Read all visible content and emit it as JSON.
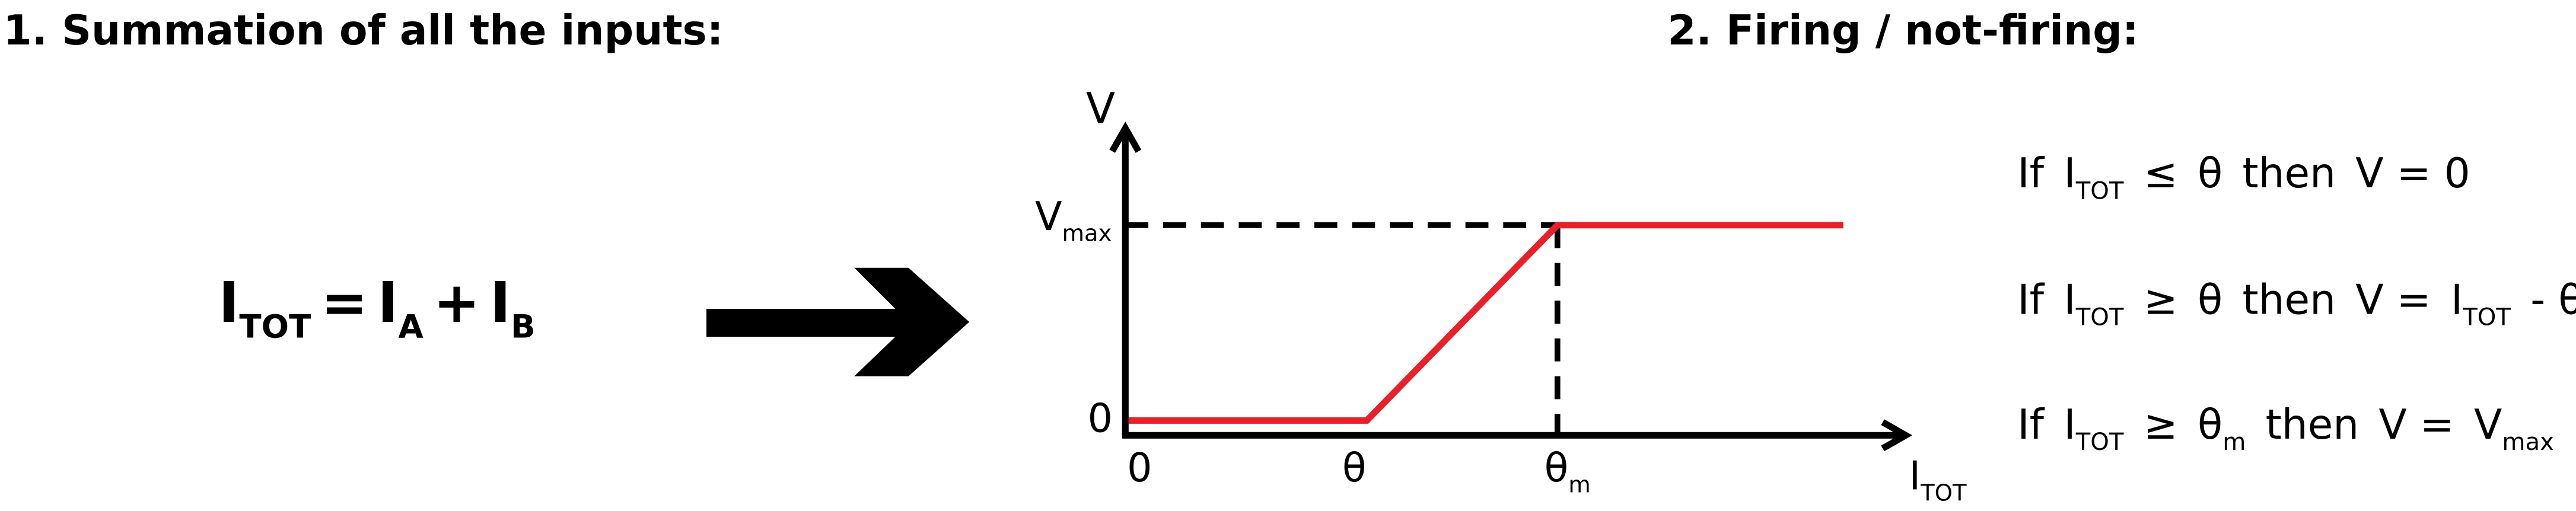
{
  "header": {
    "left_title": "1. Summation of all the inputs:",
    "right_title": "2. Firing / not-firing:"
  },
  "equation": [
    {
      "main": "I",
      "sub": "TOT"
    },
    "=",
    {
      "main": "I",
      "sub": "A"
    },
    "+",
    {
      "main": "I",
      "sub": "B"
    }
  ],
  "graph": {
    "y_label": "V",
    "y_ticks": [
      {
        "main": "V",
        "sub": "max"
      },
      "0"
    ],
    "x_ticks": [
      "0",
      "θ",
      {
        "main": "θ",
        "sub": "m"
      }
    ],
    "x_label": {
      "main": "I",
      "sub": "TOT"
    }
  },
  "conditions": [
    [
      "If",
      {
        "main": "I",
        "sub": "TOT"
      },
      "≤",
      "θ",
      "then",
      "V = 0"
    ],
    [
      "If",
      {
        "main": "I",
        "sub": "TOT"
      },
      "≥",
      "θ",
      "then",
      "V =",
      {
        "main": "I",
        "sub": "TOT"
      },
      "- θ"
    ],
    [
      "If",
      {
        "main": "I",
        "sub": "TOT"
      },
      "≥",
      {
        "main": "θ",
        "sub": "m"
      },
      "then",
      "V =",
      {
        "main": "V",
        "sub": "max"
      }
    ]
  ]
}
